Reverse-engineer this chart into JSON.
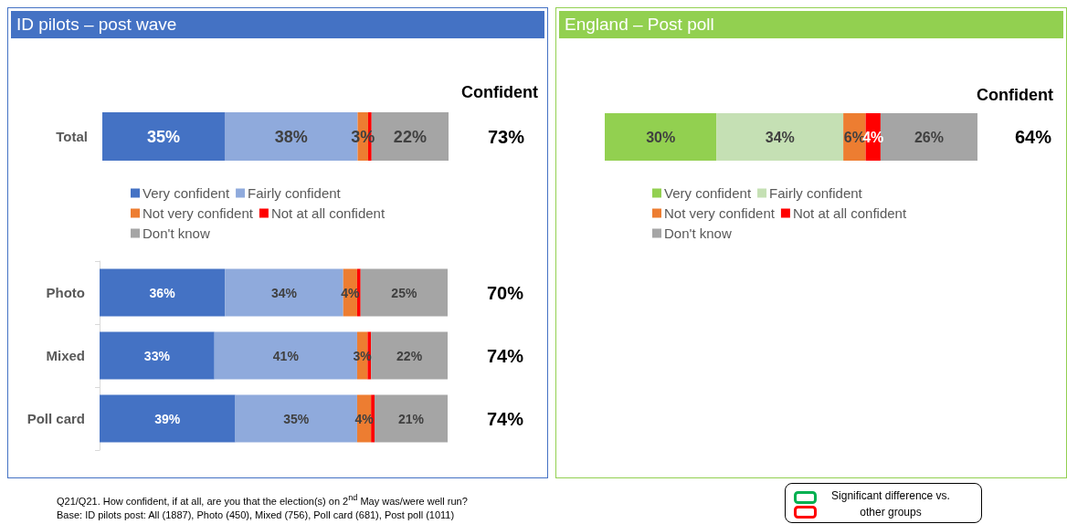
{
  "chart_data": [
    {
      "type": "bar",
      "title": "ID pilots – post wave",
      "orientation": "horizontal",
      "stacked": true,
      "categories": [
        "Total"
      ],
      "tick_labels": "y",
      "legend": "bottom",
      "series": [
        {
          "name": "Very confident",
          "color": "#4472c4",
          "values": [
            35
          ],
          "value_labels": [
            "35%"
          ]
        },
        {
          "name": "Fairly confident",
          "color": "#8faadc",
          "values": [
            38
          ],
          "value_labels": [
            "38%"
          ]
        },
        {
          "name": "Not very confident",
          "color": "#ed7d31",
          "values": [
            3
          ],
          "value_labels": [
            "3%"
          ]
        },
        {
          "name": "Not at all confident",
          "color": "#ff0000",
          "values": [
            1
          ],
          "value_labels": [
            null
          ]
        },
        {
          "name": "Don't know",
          "color": "#a5a5a5",
          "values": [
            22
          ],
          "value_labels": [
            "22%"
          ]
        }
      ],
      "annotations": [
        "Confident",
        "73%"
      ]
    },
    {
      "type": "bar",
      "orientation": "horizontal",
      "stacked": true,
      "categories": [
        "Photo",
        "Mixed",
        "Poll card"
      ],
      "tick_labels": "y",
      "series": [
        {
          "color": "#4472c4",
          "values": [
            36,
            33,
            39
          ],
          "value_labels": [
            "36%",
            "33%",
            "39%"
          ]
        },
        {
          "color": "#8faadc",
          "values": [
            34,
            41,
            35
          ],
          "value_labels": [
            "34%",
            "41%",
            "35%"
          ]
        },
        {
          "color": "#ed7d31",
          "values": [
            4,
            3,
            4
          ],
          "value_labels": [
            "4%",
            "3%",
            "4%"
          ]
        },
        {
          "color": "#ff0000",
          "values": [
            1,
            1,
            1
          ],
          "value_labels": [
            null,
            null,
            null
          ]
        },
        {
          "color": "#a5a5a5",
          "values": [
            25,
            22,
            21
          ],
          "value_labels": [
            "25%",
            "22%",
            "21%"
          ]
        }
      ],
      "annotations": [
        "70%",
        "74%",
        "74%",
        "Q21/Q21. How confident, if at all, are you that the election(s) on 2$^{nd}$ May was/were well run?",
        "Base: ID pilots post: All (1887), Photo (450), Mixed (756), Poll card (681), Post poll (1011)"
      ]
    },
    {
      "type": "bar",
      "title": "England – Post poll",
      "orientation": "horizontal",
      "stacked": true,
      "categories": [
        null
      ],
      "tick_labels": false,
      "legend": "bottom",
      "series": [
        {
          "name": "Very confident",
          "color": "#92d050",
          "values": [
            30
          ],
          "value_labels": [
            "30%"
          ]
        },
        {
          "name": "Fairly confident",
          "color": "#c5e0b4",
          "values": [
            34
          ],
          "value_labels": [
            "34%"
          ]
        },
        {
          "name": "Not very confident",
          "color": "#ed7d31",
          "values": [
            6
          ],
          "value_labels": [
            "6%"
          ]
        },
        {
          "name": "Not at all confident",
          "color": "#ff0000",
          "values": [
            4
          ],
          "value_labels": [
            "4%"
          ]
        },
        {
          "name": "Don't know",
          "color": "#a5a5a5",
          "values": [
            26
          ],
          "value_labels": [
            "26%"
          ]
        }
      ],
      "annotations": [
        "Confident",
        "64%",
        "Significant difference vs. other groups"
      ]
    }
  ]
}
